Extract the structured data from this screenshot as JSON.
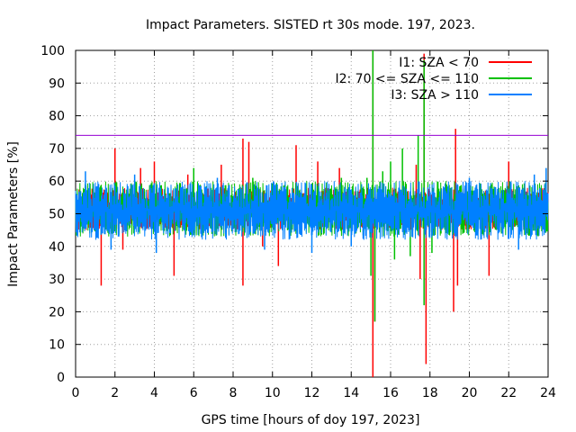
{
  "chart_data": {
    "type": "line",
    "title": "Impact Parameters. SISTED rt 30s mode. 197, 2023.",
    "xlabel": "GPS time [hours of doy 197, 2023]",
    "ylabel": "Impact Parameters [%]",
    "xlim": [
      0,
      24
    ],
    "ylim": [
      0,
      100
    ],
    "xticks": [
      "0",
      "2",
      "4",
      "6",
      "8",
      "10",
      "12",
      "14",
      "16",
      "18",
      "20",
      "22",
      "24"
    ],
    "yticks": [
      "0",
      "10",
      "20",
      "30",
      "40",
      "50",
      "60",
      "70",
      "80",
      "90",
      "100"
    ],
    "grid": true,
    "legend_position": "top-right",
    "threshold": {
      "y": 74,
      "color": "#9400d3"
    },
    "series": [
      {
        "name": "I1: SZA < 70",
        "color": "#ff0000",
        "baseline": 51,
        "typical_range": [
          45,
          58
        ],
        "spikes": [
          {
            "x": 1.3,
            "y": 28
          },
          {
            "x": 2.0,
            "y": 70
          },
          {
            "x": 2.4,
            "y": 39
          },
          {
            "x": 3.3,
            "y": 64
          },
          {
            "x": 4.0,
            "y": 66
          },
          {
            "x": 5.0,
            "y": 31
          },
          {
            "x": 5.7,
            "y": 62
          },
          {
            "x": 7.4,
            "y": 65
          },
          {
            "x": 8.5,
            "y": 73
          },
          {
            "x": 8.5,
            "y": 28
          },
          {
            "x": 8.8,
            "y": 72
          },
          {
            "x": 9.5,
            "y": 40
          },
          {
            "x": 10.3,
            "y": 34
          },
          {
            "x": 11.2,
            "y": 71
          },
          {
            "x": 12.3,
            "y": 66
          },
          {
            "x": 13.4,
            "y": 64
          },
          {
            "x": 15.1,
            "y": 100
          },
          {
            "x": 15.1,
            "y": 0
          },
          {
            "x": 15.2,
            "y": 17
          },
          {
            "x": 17.3,
            "y": 65
          },
          {
            "x": 17.5,
            "y": 30
          },
          {
            "x": 17.7,
            "y": 99
          },
          {
            "x": 17.8,
            "y": 4
          },
          {
            "x": 19.2,
            "y": 20
          },
          {
            "x": 19.3,
            "y": 76
          },
          {
            "x": 19.4,
            "y": 28
          },
          {
            "x": 21.0,
            "y": 31
          },
          {
            "x": 22.0,
            "y": 66
          }
        ]
      },
      {
        "name": "I2: 70 <= SZA <= 110",
        "color": "#00c000",
        "baseline": 51,
        "typical_range": [
          43,
          60
        ],
        "spikes": [
          {
            "x": 6.0,
            "y": 64
          },
          {
            "x": 9.0,
            "y": 61
          },
          {
            "x": 13.5,
            "y": 61
          },
          {
            "x": 14.8,
            "y": 61
          },
          {
            "x": 15.0,
            "y": 31
          },
          {
            "x": 15.1,
            "y": 100
          },
          {
            "x": 15.2,
            "y": 17
          },
          {
            "x": 15.6,
            "y": 63
          },
          {
            "x": 16.0,
            "y": 66
          },
          {
            "x": 16.2,
            "y": 36
          },
          {
            "x": 16.6,
            "y": 70
          },
          {
            "x": 17.0,
            "y": 37
          },
          {
            "x": 17.4,
            "y": 74
          },
          {
            "x": 17.7,
            "y": 97
          },
          {
            "x": 17.7,
            "y": 22
          },
          {
            "x": 18.1,
            "y": 38
          }
        ]
      },
      {
        "name": "I3: SZA > 110",
        "color": "#0080ff",
        "baseline": 51,
        "typical_range": [
          42,
          60
        ],
        "spikes": [
          {
            "x": 0.1,
            "y": 44
          },
          {
            "x": 0.5,
            "y": 63
          },
          {
            "x": 1.8,
            "y": 39
          },
          {
            "x": 3.0,
            "y": 62
          },
          {
            "x": 4.1,
            "y": 38
          },
          {
            "x": 7.2,
            "y": 61
          },
          {
            "x": 9.6,
            "y": 39
          },
          {
            "x": 12.0,
            "y": 38
          },
          {
            "x": 14.0,
            "y": 40
          },
          {
            "x": 19.4,
            "y": 59
          },
          {
            "x": 20.0,
            "y": 61
          },
          {
            "x": 22.5,
            "y": 39
          },
          {
            "x": 23.3,
            "y": 62
          },
          {
            "x": 23.9,
            "y": 64
          }
        ]
      }
    ]
  }
}
